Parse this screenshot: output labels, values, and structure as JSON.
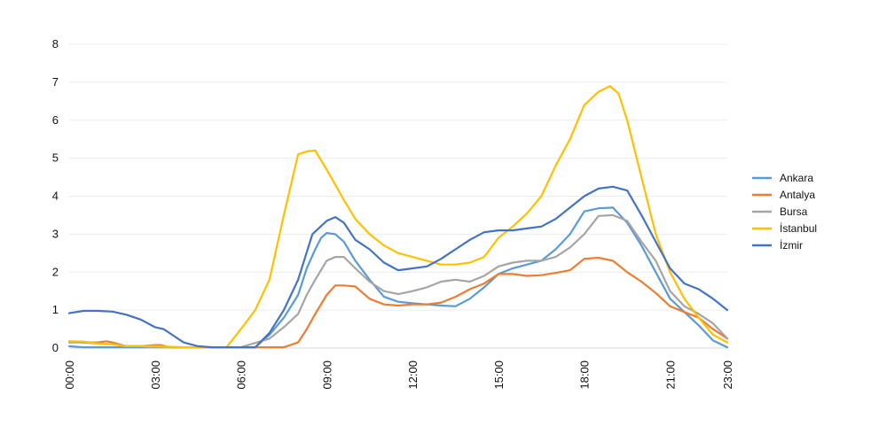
{
  "chart_data": {
    "type": "line",
    "title": "",
    "xlabel": "",
    "ylabel": "",
    "ylim": [
      0,
      8
    ],
    "xlim": [
      0,
      23
    ],
    "grid": true,
    "legend_position": "right",
    "y_ticks": [
      0,
      1,
      2,
      3,
      4,
      5,
      6,
      7,
      8
    ],
    "y_tick_labels": [
      "0",
      "1",
      "2",
      "3",
      "4",
      "5",
      "6",
      "7",
      "8"
    ],
    "x_ticks": [
      0,
      3,
      6,
      9,
      12,
      15,
      18,
      21,
      23
    ],
    "x_tick_labels": [
      "00:00",
      "03:00",
      "06:00",
      "09:00",
      "12:00",
      "15:00",
      "18:00",
      "21:00",
      "23:00"
    ],
    "series": [
      {
        "name": "Ankara",
        "color": "#5B9BD5",
        "points": [
          [
            0,
            0.05
          ],
          [
            0.5,
            0.02
          ],
          [
            1,
            0.02
          ],
          [
            1.5,
            0.02
          ],
          [
            2,
            0.02
          ],
          [
            2.5,
            0.02
          ],
          [
            3,
            0.02
          ],
          [
            3.5,
            0.02
          ],
          [
            4,
            0.02
          ],
          [
            4.5,
            0.02
          ],
          [
            5,
            0.02
          ],
          [
            5.5,
            0.02
          ],
          [
            6,
            0.02
          ],
          [
            6.5,
            0.02
          ],
          [
            7,
            0.35
          ],
          [
            7.5,
            0.8
          ],
          [
            8,
            1.4
          ],
          [
            8.3,
            2.1
          ],
          [
            8.6,
            2.6
          ],
          [
            8.8,
            2.9
          ],
          [
            9,
            3.03
          ],
          [
            9.3,
            3.0
          ],
          [
            9.6,
            2.8
          ],
          [
            10,
            2.3
          ],
          [
            10.5,
            1.8
          ],
          [
            11,
            1.35
          ],
          [
            11.5,
            1.22
          ],
          [
            12,
            1.18
          ],
          [
            12.5,
            1.15
          ],
          [
            13,
            1.12
          ],
          [
            13.5,
            1.1
          ],
          [
            14,
            1.3
          ],
          [
            14.5,
            1.6
          ],
          [
            15,
            1.95
          ],
          [
            15.5,
            2.1
          ],
          [
            16,
            2.2
          ],
          [
            16.5,
            2.3
          ],
          [
            17,
            2.6
          ],
          [
            17.5,
            3.0
          ],
          [
            18,
            3.6
          ],
          [
            18.5,
            3.68
          ],
          [
            19,
            3.7
          ],
          [
            19.5,
            3.3
          ],
          [
            20,
            2.7
          ],
          [
            20.5,
            2.0
          ],
          [
            21,
            1.3
          ],
          [
            21.5,
            0.95
          ],
          [
            22,
            0.6
          ],
          [
            22.5,
            0.2
          ],
          [
            23,
            0.02
          ]
        ]
      },
      {
        "name": "Antalya",
        "color": "#ED7D31",
        "points": [
          [
            0,
            0.18
          ],
          [
            0.5,
            0.15
          ],
          [
            1,
            0.15
          ],
          [
            1.3,
            0.18
          ],
          [
            1.5,
            0.15
          ],
          [
            2,
            0.05
          ],
          [
            2.5,
            0.05
          ],
          [
            3,
            0.08
          ],
          [
            3.2,
            0.08
          ],
          [
            3.5,
            0.02
          ],
          [
            4,
            0.02
          ],
          [
            5,
            0.02
          ],
          [
            6,
            0.02
          ],
          [
            7,
            0.02
          ],
          [
            7.5,
            0.02
          ],
          [
            8,
            0.15
          ],
          [
            8.3,
            0.5
          ],
          [
            8.6,
            0.9
          ],
          [
            9,
            1.4
          ],
          [
            9.3,
            1.65
          ],
          [
            9.6,
            1.65
          ],
          [
            10,
            1.62
          ],
          [
            10.5,
            1.3
          ],
          [
            11,
            1.15
          ],
          [
            11.5,
            1.12
          ],
          [
            12,
            1.15
          ],
          [
            12.5,
            1.15
          ],
          [
            13,
            1.2
          ],
          [
            13.5,
            1.35
          ],
          [
            14,
            1.55
          ],
          [
            14.5,
            1.7
          ],
          [
            15,
            1.95
          ],
          [
            15.5,
            1.95
          ],
          [
            16,
            1.9
          ],
          [
            16.5,
            1.92
          ],
          [
            17,
            1.98
          ],
          [
            17.5,
            2.05
          ],
          [
            18,
            2.35
          ],
          [
            18.5,
            2.38
          ],
          [
            19,
            2.3
          ],
          [
            19.5,
            2.0
          ],
          [
            20,
            1.75
          ],
          [
            20.5,
            1.45
          ],
          [
            21,
            1.1
          ],
          [
            21.5,
            0.95
          ],
          [
            22,
            0.8
          ],
          [
            22.5,
            0.5
          ],
          [
            23,
            0.25
          ]
        ]
      },
      {
        "name": "Bursa",
        "color": "#A5A5A5",
        "points": [
          [
            0,
            0.15
          ],
          [
            0.5,
            0.15
          ],
          [
            1,
            0.12
          ],
          [
            1.5,
            0.1
          ],
          [
            2,
            0.05
          ],
          [
            2.5,
            0.05
          ],
          [
            3,
            0.02
          ],
          [
            4,
            0.02
          ],
          [
            5,
            0.02
          ],
          [
            6,
            0.02
          ],
          [
            7,
            0.25
          ],
          [
            7.5,
            0.55
          ],
          [
            8,
            0.9
          ],
          [
            8.3,
            1.4
          ],
          [
            8.6,
            1.8
          ],
          [
            9,
            2.3
          ],
          [
            9.3,
            2.4
          ],
          [
            9.6,
            2.4
          ],
          [
            10,
            2.1
          ],
          [
            10.5,
            1.75
          ],
          [
            11,
            1.5
          ],
          [
            11.5,
            1.42
          ],
          [
            12,
            1.5
          ],
          [
            12.5,
            1.6
          ],
          [
            13,
            1.75
          ],
          [
            13.5,
            1.8
          ],
          [
            14,
            1.75
          ],
          [
            14.5,
            1.9
          ],
          [
            15,
            2.15
          ],
          [
            15.5,
            2.25
          ],
          [
            16,
            2.3
          ],
          [
            16.5,
            2.3
          ],
          [
            17,
            2.4
          ],
          [
            17.5,
            2.65
          ],
          [
            18,
            3.0
          ],
          [
            18.5,
            3.48
          ],
          [
            19,
            3.5
          ],
          [
            19.5,
            3.35
          ],
          [
            20,
            2.8
          ],
          [
            20.5,
            2.3
          ],
          [
            21,
            1.5
          ],
          [
            21.5,
            1.1
          ],
          [
            22,
            0.9
          ],
          [
            22.5,
            0.65
          ],
          [
            23,
            0.25
          ]
        ]
      },
      {
        "name": "İstanbul",
        "color": "#FFC000",
        "points": [
          [
            0,
            0.18
          ],
          [
            0.5,
            0.17
          ],
          [
            1,
            0.12
          ],
          [
            1.5,
            0.1
          ],
          [
            2,
            0.05
          ],
          [
            2.5,
            0.05
          ],
          [
            3,
            0.05
          ],
          [
            4,
            0.02
          ],
          [
            5,
            0.02
          ],
          [
            5.5,
            0.02
          ],
          [
            6,
            0.5
          ],
          [
            6.5,
            1.0
          ],
          [
            7,
            1.8
          ],
          [
            7.5,
            3.5
          ],
          [
            8,
            5.1
          ],
          [
            8.3,
            5.18
          ],
          [
            8.6,
            5.2
          ],
          [
            9,
            4.7
          ],
          [
            9.3,
            4.3
          ],
          [
            9.6,
            3.9
          ],
          [
            10,
            3.4
          ],
          [
            10.5,
            3.0
          ],
          [
            11,
            2.7
          ],
          [
            11.5,
            2.5
          ],
          [
            12,
            2.4
          ],
          [
            12.5,
            2.3
          ],
          [
            13,
            2.2
          ],
          [
            13.5,
            2.2
          ],
          [
            14,
            2.25
          ],
          [
            14.5,
            2.4
          ],
          [
            15,
            2.9
          ],
          [
            15.5,
            3.2
          ],
          [
            16,
            3.55
          ],
          [
            16.5,
            4.0
          ],
          [
            17,
            4.8
          ],
          [
            17.5,
            5.5
          ],
          [
            18,
            6.4
          ],
          [
            18.5,
            6.75
          ],
          [
            18.9,
            6.9
          ],
          [
            19.2,
            6.7
          ],
          [
            19.5,
            6.0
          ],
          [
            20,
            4.5
          ],
          [
            20.5,
            3.0
          ],
          [
            21,
            2.0
          ],
          [
            21.5,
            1.3
          ],
          [
            22,
            0.8
          ],
          [
            22.5,
            0.35
          ],
          [
            23,
            0.15
          ]
        ]
      },
      {
        "name": "İzmir",
        "color": "#4472C4",
        "points": [
          [
            0,
            0.92
          ],
          [
            0.5,
            0.98
          ],
          [
            1,
            0.98
          ],
          [
            1.5,
            0.96
          ],
          [
            2,
            0.88
          ],
          [
            2.5,
            0.75
          ],
          [
            3,
            0.55
          ],
          [
            3.3,
            0.5
          ],
          [
            3.6,
            0.35
          ],
          [
            4,
            0.15
          ],
          [
            4.5,
            0.05
          ],
          [
            5,
            0.02
          ],
          [
            6,
            0.02
          ],
          [
            6.5,
            0.02
          ],
          [
            7,
            0.4
          ],
          [
            7.5,
            1.0
          ],
          [
            8,
            1.8
          ],
          [
            8.5,
            3.0
          ],
          [
            9,
            3.35
          ],
          [
            9.3,
            3.45
          ],
          [
            9.6,
            3.3
          ],
          [
            10,
            2.85
          ],
          [
            10.5,
            2.6
          ],
          [
            11,
            2.25
          ],
          [
            11.5,
            2.05
          ],
          [
            12,
            2.1
          ],
          [
            12.5,
            2.15
          ],
          [
            13,
            2.35
          ],
          [
            13.5,
            2.6
          ],
          [
            14,
            2.85
          ],
          [
            14.5,
            3.05
          ],
          [
            15,
            3.1
          ],
          [
            15.5,
            3.1
          ],
          [
            16,
            3.15
          ],
          [
            16.5,
            3.2
          ],
          [
            17,
            3.4
          ],
          [
            17.5,
            3.7
          ],
          [
            18,
            4.0
          ],
          [
            18.5,
            4.2
          ],
          [
            19,
            4.25
          ],
          [
            19.5,
            4.15
          ],
          [
            20,
            3.5
          ],
          [
            20.5,
            2.8
          ],
          [
            21,
            2.1
          ],
          [
            21.5,
            1.7
          ],
          [
            22,
            1.55
          ],
          [
            22.5,
            1.3
          ],
          [
            23,
            1.0
          ]
        ]
      }
    ]
  }
}
